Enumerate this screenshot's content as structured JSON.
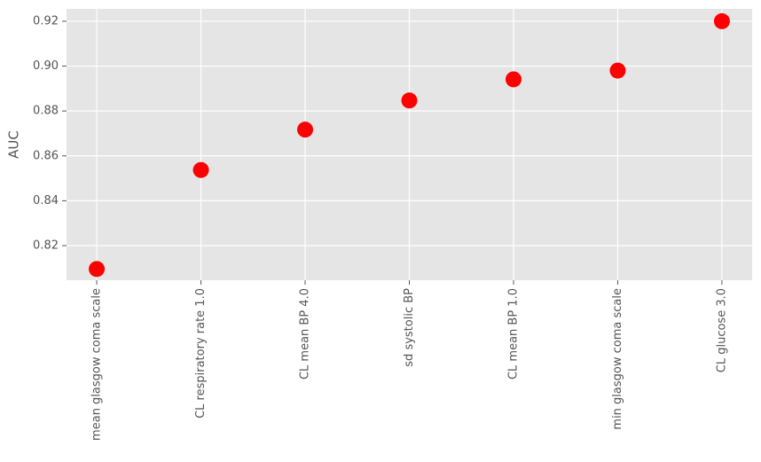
{
  "chart_data": {
    "type": "scatter",
    "y_label": "AUC",
    "categories": [
      "mean glasgow coma scale",
      "CL respiratory rate 1.0",
      "CL mean BP 4.0",
      "sd systolic BP",
      "CL mean BP 1.0",
      "min glasgow coma scale",
      "CL glucose 3.0"
    ],
    "values": [
      0.8096,
      0.8537,
      0.8717,
      0.8847,
      0.8941,
      0.898,
      0.92
    ],
    "color": "#ff0000",
    "ylim": [
      0.8046,
      0.9255
    ],
    "yticks": [
      0.82,
      0.84,
      0.86,
      0.88,
      {
        "value": 0.9,
        "label": "0.90"
      },
      0.92
    ],
    "grid": true
  }
}
